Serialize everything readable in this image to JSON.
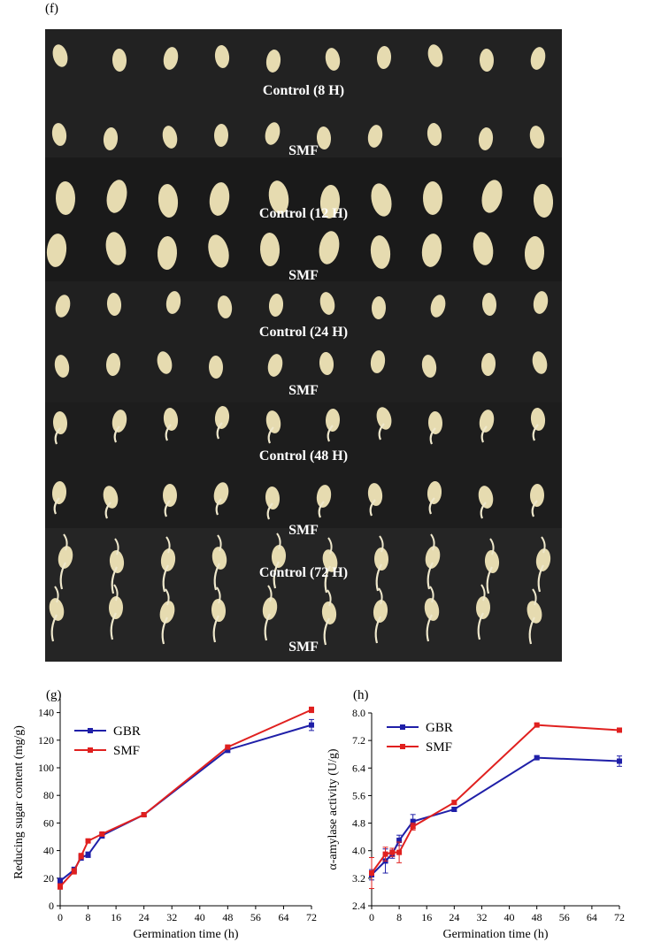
{
  "figure": {
    "panel_f_label": "(f)",
    "photo_rows": [
      "Control (8 H)",
      "SMF",
      "Control (12 H)",
      "SMF",
      "Control (24 H)",
      "SMF",
      "Control (48 H)",
      "SMF",
      "Control (72 H)",
      "SMF"
    ],
    "colors": {
      "gbr": "#1f1fa8",
      "smf": "#e0201f",
      "photo_bg": "#1c1c1c",
      "grain": "#e6dbb0"
    }
  },
  "chart_data": [
    {
      "type": "line",
      "panel_label": "(g)",
      "title": "",
      "xlabel": "Germination time (h)",
      "ylabel": "Reducing sugar content (mg/g)",
      "xlim": [
        0,
        72
      ],
      "ylim": [
        0,
        150
      ],
      "xticks": [
        0,
        8,
        16,
        24,
        32,
        40,
        48,
        56,
        64,
        72
      ],
      "yticks": [
        0,
        20,
        40,
        60,
        80,
        100,
        120,
        140
      ],
      "legend": "top-left",
      "series": [
        {
          "name": "GBR",
          "color": "#1f1fa8",
          "x": [
            0,
            4,
            6,
            8,
            12,
            24,
            48,
            72
          ],
          "y": [
            18,
            26,
            35,
            37,
            51,
            66,
            113,
            131
          ],
          "err": [
            2,
            2,
            2,
            2,
            2,
            1,
            2,
            4
          ]
        },
        {
          "name": "SMF",
          "color": "#e0201f",
          "x": [
            0,
            4,
            6,
            8,
            12,
            24,
            48,
            72
          ],
          "y": [
            14,
            25,
            36,
            47,
            52,
            66,
            115,
            142
          ],
          "err": [
            2,
            2,
            2,
            1,
            1,
            1,
            1,
            2
          ]
        }
      ]
    },
    {
      "type": "line",
      "panel_label": "(h)",
      "title": "",
      "xlabel": "Germination time (h)",
      "ylabel": "α-amylase activity (U/g)",
      "xlim": [
        0,
        72
      ],
      "ylim": [
        2.4,
        8.0
      ],
      "xticks": [
        0,
        8,
        16,
        24,
        32,
        40,
        48,
        56,
        64,
        72
      ],
      "yticks": [
        "2.4",
        "3.2",
        "4.0",
        "4.8",
        "5.6",
        "6.4",
        "7.2",
        "8.0"
      ],
      "legend": "top-left",
      "series": [
        {
          "name": "GBR",
          "color": "#1f1fa8",
          "x": [
            0,
            4,
            6,
            8,
            12,
            24,
            48,
            72
          ],
          "y": [
            3.3,
            3.7,
            3.9,
            4.3,
            4.85,
            5.2,
            6.7,
            6.6
          ],
          "err": [
            0.15,
            0.35,
            0.12,
            0.15,
            0.2,
            0.06,
            0.05,
            0.15
          ]
        },
        {
          "name": "SMF",
          "color": "#e0201f",
          "x": [
            0,
            4,
            6,
            8,
            12,
            24,
            48,
            72
          ],
          "y": [
            3.35,
            3.9,
            3.95,
            3.95,
            4.7,
            5.4,
            7.65,
            7.5
          ],
          "err": [
            0.45,
            0.2,
            0.12,
            0.3,
            0.1,
            0.06,
            0.05,
            0.05
          ]
        }
      ]
    }
  ]
}
